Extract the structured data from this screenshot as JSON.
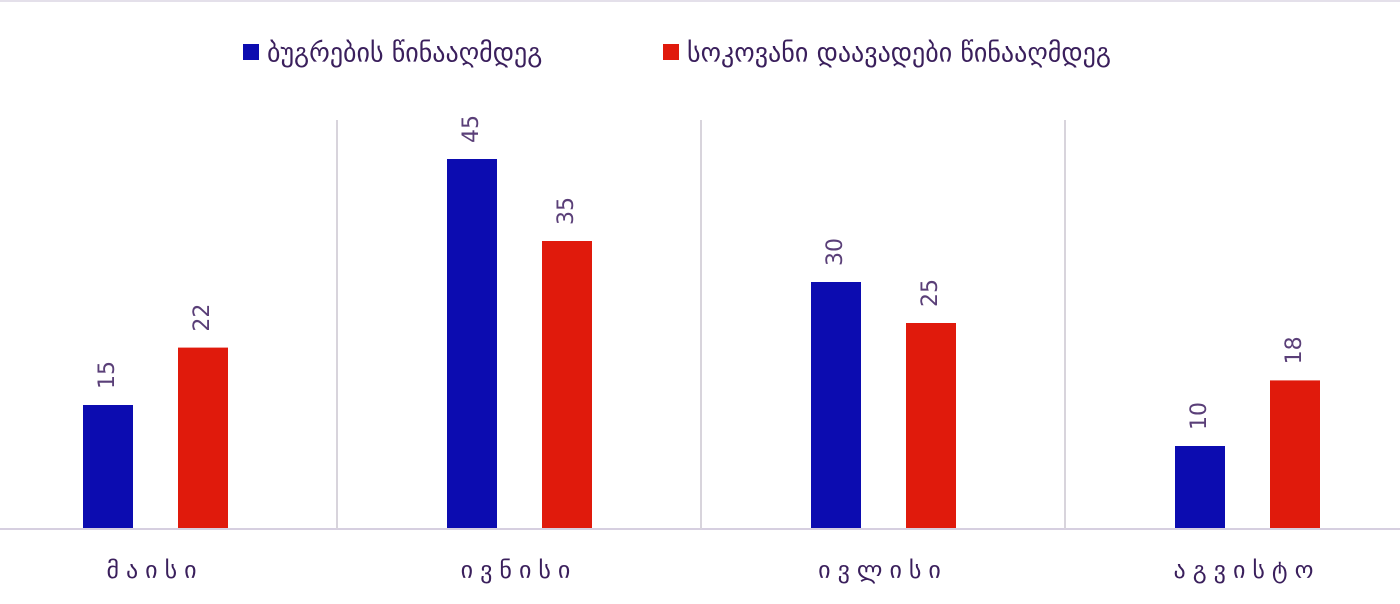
{
  "chart_data": {
    "type": "bar",
    "categories": [
      "მაისი",
      "ივნისი",
      "ივლისი",
      "აგვისტო"
    ],
    "series": [
      {
        "name": "ბუგრების წინააღმდეგ",
        "color": "#0c0cb0",
        "values": [
          15,
          45,
          30,
          10
        ]
      },
      {
        "name": "სოკოვანი დაავადები წინააღმდეგ",
        "color": "#e01a0c",
        "values": [
          22,
          35,
          25,
          18
        ]
      }
    ],
    "legend": "top"
  }
}
